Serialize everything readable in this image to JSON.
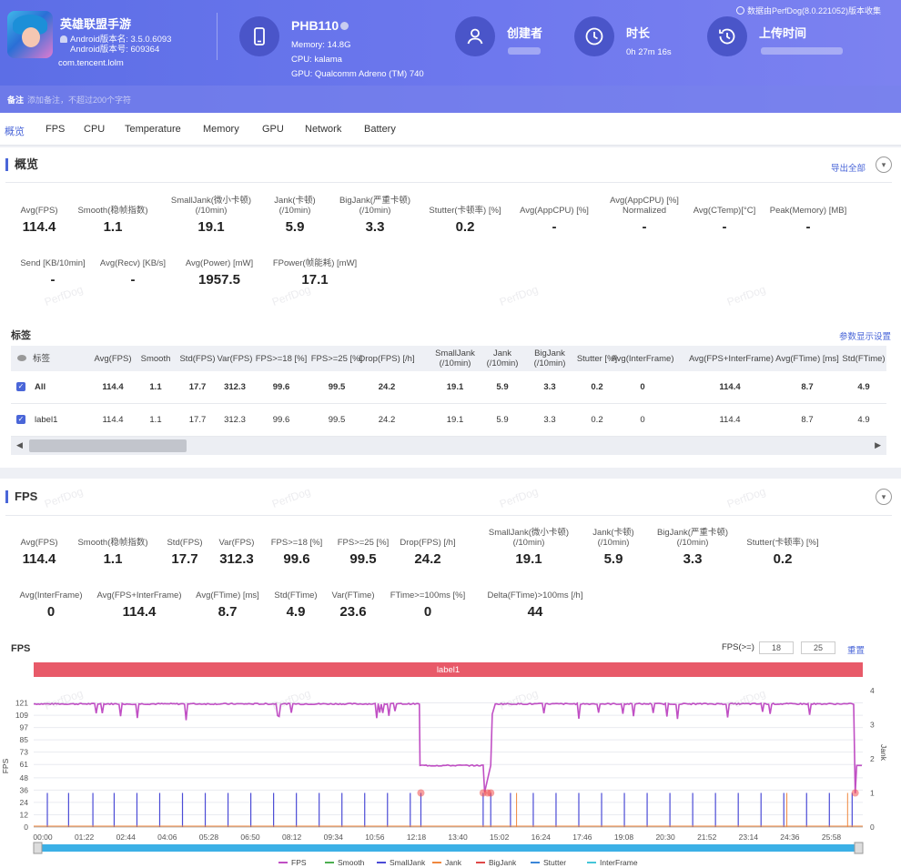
{
  "header": {
    "app_name": "英雄联盟手游",
    "android_version_name": "Android版本名: 3.5.0.6093",
    "android_version_code": "Android版本号: 609364",
    "package": "com.tencent.lolm",
    "device_name": "PHB110",
    "memory": "Memory: 14.8G",
    "cpu": "CPU: kalama",
    "gpu": "GPU: Qualcomm Adreno (TM) 740",
    "creator_title": "创建者",
    "duration_title": "时长",
    "duration_value": "0h 27m 16s",
    "upload_title": "上传时间",
    "source_note": "数据由PerfDog(8.0.221052)版本收集",
    "remark_label": "备注",
    "remark_placeholder": "添加备注，不超过200个字符"
  },
  "tabs": [
    "概览",
    "FPS",
    "CPU",
    "Temperature",
    "Memory",
    "GPU",
    "Network",
    "Battery"
  ],
  "overview": {
    "title": "概览",
    "export_all": "导出全部",
    "metrics_row1": [
      {
        "label": "Avg(FPS)",
        "value": "114.4"
      },
      {
        "label": "Smooth(稳帧指数)",
        "value": "1.1"
      },
      {
        "label": "SmallJank(微小卡顿)\n(/10min)",
        "value": "19.1"
      },
      {
        "label": "Jank(卡顿)\n(/10min)",
        "value": "5.9"
      },
      {
        "label": "BigJank(严重卡顿)\n(/10min)",
        "value": "3.3"
      },
      {
        "label": "Stutter(卡顿率) [%]",
        "value": "0.2"
      },
      {
        "label": "Avg(AppCPU) [%]",
        "value": "-"
      },
      {
        "label": "Avg(AppCPU) [%]\nNormalized",
        "value": "-"
      },
      {
        "label": "Avg(CTemp)[°C]",
        "value": "-"
      },
      {
        "label": "Peak(Memory) [MB]",
        "value": "-"
      }
    ],
    "metrics_row2": [
      {
        "label": "Send [KB/10min]",
        "value": "-"
      },
      {
        "label": "Avg(Recv) [KB/s]",
        "value": "-"
      },
      {
        "label": "Avg(Power) [mW]",
        "value": "1957.5"
      },
      {
        "label": "FPower(帧能耗) [mW]",
        "value": "17.1"
      }
    ]
  },
  "labels_table": {
    "title": "标签",
    "param_settings": "参数显示设置",
    "headers": [
      "标签",
      "Avg(FPS)",
      "Smooth",
      "Std(FPS)",
      "Var(FPS)",
      "FPS>=18 [%]",
      "FPS>=25 [%]",
      "Drop(FPS) [/h]",
      "SmallJank\n(/10min)",
      "Jank\n(/10min)",
      "BigJank\n(/10min)",
      "Stutter [%]",
      "Avg(InterFrame)",
      "Avg(FPS+InterFrame)",
      "Avg(FTime) [ms]",
      "Std(FTime)"
    ],
    "rows": [
      [
        "All",
        "114.4",
        "1.1",
        "17.7",
        "312.3",
        "99.6",
        "99.5",
        "24.2",
        "19.1",
        "5.9",
        "3.3",
        "0.2",
        "0",
        "114.4",
        "8.7",
        "4.9"
      ],
      [
        "label1",
        "114.4",
        "1.1",
        "17.7",
        "312.3",
        "99.6",
        "99.5",
        "24.2",
        "19.1",
        "5.9",
        "3.3",
        "0.2",
        "0",
        "114.4",
        "8.7",
        "4.9"
      ]
    ]
  },
  "fps_section": {
    "title": "FPS",
    "metrics_row1": [
      {
        "label": "Avg(FPS)",
        "value": "114.4"
      },
      {
        "label": "Smooth(稳帧指数)",
        "value": "1.1"
      },
      {
        "label": "Std(FPS)",
        "value": "17.7"
      },
      {
        "label": "Var(FPS)",
        "value": "312.3"
      },
      {
        "label": "FPS>=18 [%]",
        "value": "99.6"
      },
      {
        "label": "FPS>=25 [%]",
        "value": "99.5"
      },
      {
        "label": "Drop(FPS) [/h]",
        "value": "24.2"
      },
      {
        "label": "SmallJank(微小卡顿)\n(/10min)",
        "value": "19.1"
      },
      {
        "label": "Jank(卡顿)\n(/10min)",
        "value": "5.9"
      },
      {
        "label": "BigJank(严重卡顿)\n(/10min)",
        "value": "3.3"
      },
      {
        "label": "Stutter(卡顿率) [%]",
        "value": "0.2"
      }
    ],
    "metrics_row2": [
      {
        "label": "Avg(InterFrame)",
        "value": "0"
      },
      {
        "label": "Avg(FPS+InterFrame)",
        "value": "114.4"
      },
      {
        "label": "Avg(FTime) [ms]",
        "value": "8.7"
      },
      {
        "label": "Std(FTime)",
        "value": "4.9"
      },
      {
        "label": "Var(FTime)",
        "value": "23.6"
      },
      {
        "label": "FTime>=100ms [%]",
        "value": "0"
      },
      {
        "label": "Delta(FTime)>100ms [/h]",
        "value": "44"
      }
    ],
    "chart_title": "FPS",
    "fps_threshold_label": "FPS(>=)",
    "fps_threshold_1": "18",
    "fps_threshold_2": "25",
    "reset": "重置"
  },
  "watermark": "PerfDog",
  "chart_data": {
    "type": "line",
    "title": "FPS",
    "band_label": "label1",
    "ylabel": "FPS",
    "y2label": "Jank",
    "yticks": [
      0,
      12,
      24,
      36,
      48,
      61,
      73,
      85,
      97,
      109,
      121
    ],
    "y2ticks": [
      0,
      1,
      2,
      3,
      4
    ],
    "ylim": [
      0,
      133
    ],
    "y2lim": [
      0,
      4
    ],
    "xticks": [
      "00:00",
      "01:22",
      "02:44",
      "04:06",
      "05:28",
      "06:50",
      "08:12",
      "09:34",
      "10:56",
      "12:18",
      "13:40",
      "15:02",
      "16:24",
      "17:46",
      "19:08",
      "20:30",
      "21:52",
      "23:14",
      "24:36",
      "25:58"
    ],
    "series": [
      {
        "name": "FPS",
        "color": "#c04fc4",
        "points": [
          [
            0,
            120
          ],
          [
            12.7,
            120
          ],
          [
            12.72,
            60
          ],
          [
            14.8,
            60
          ],
          [
            14.85,
            34
          ],
          [
            15.05,
            60
          ],
          [
            15.1,
            110
          ],
          [
            15.2,
            120
          ],
          [
            27.0,
            120
          ],
          [
            27.05,
            33
          ],
          [
            27.1,
            60
          ],
          [
            27.27,
            60
          ]
        ]
      },
      {
        "name": "Smooth",
        "color": "#4caf50",
        "points": []
      },
      {
        "name": "SmallJank",
        "color": "#4b4bd6",
        "points": []
      },
      {
        "name": "Jank",
        "color": "#f0873e",
        "points": []
      },
      {
        "name": "BigJank",
        "color": "#e04848",
        "points": []
      },
      {
        "name": "Stutter",
        "color": "#3a86d8",
        "points": []
      },
      {
        "name": "InterFrame",
        "color": "#45c6d8",
        "points": []
      }
    ],
    "smalljank_times_min": [
      0.45,
      1.15,
      1.95,
      2.65,
      3.4,
      4.15,
      4.9,
      5.65,
      6.4,
      7.15,
      7.9,
      8.65,
      9.4,
      10.15,
      10.9,
      11.65,
      12.4,
      12.75,
      14.8,
      15.05,
      15.7,
      16.45,
      17.2,
      17.95,
      18.7,
      19.45,
      20.2,
      20.95,
      21.7,
      22.45,
      23.2,
      23.95,
      24.7,
      25.45,
      26.2,
      26.95
    ],
    "bigjank_times_min": [
      12.75,
      14.8,
      14.95,
      15.05,
      27.05
    ],
    "legend": [
      "FPS",
      "Smooth",
      "SmallJank",
      "Jank",
      "BigJank",
      "Stutter",
      "InterFrame"
    ]
  }
}
